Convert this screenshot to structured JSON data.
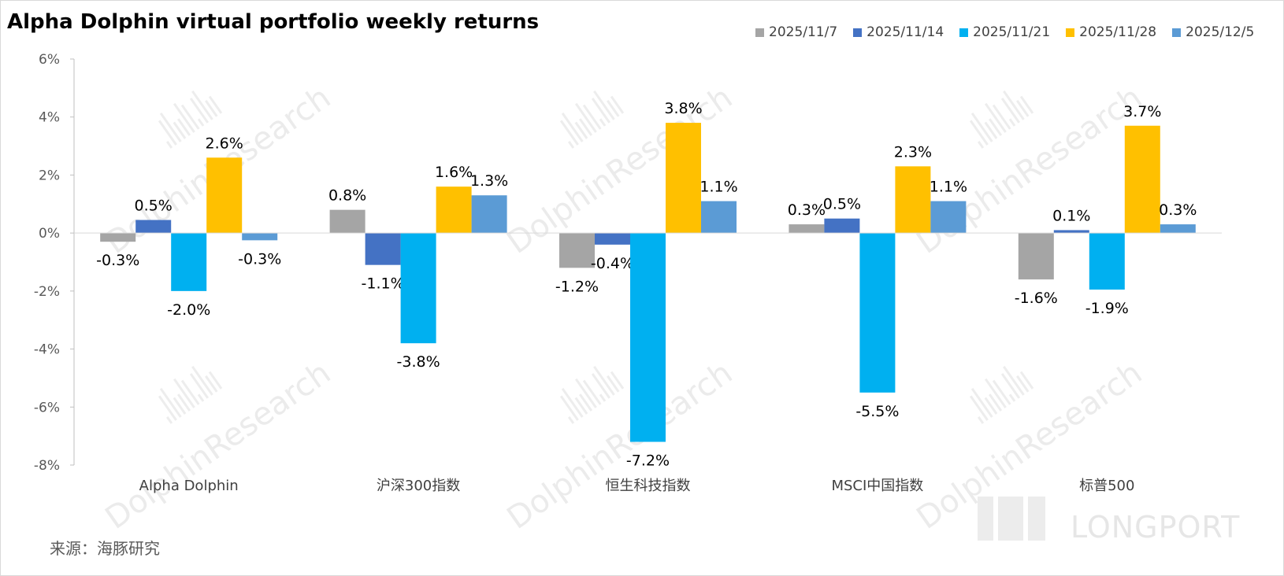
{
  "chart_data": {
    "type": "bar",
    "title": "Alpha Dolphin virtual portfolio weekly returns",
    "categories": [
      "Alpha Dolphin",
      "沪深300指数",
      "恒生科技指数",
      "MSCI中国指数",
      "标普500"
    ],
    "series": [
      {
        "name": "2025/11/7",
        "color": "#a5a5a5",
        "values": [
          -0.3,
          0.8,
          -1.2,
          0.3,
          -1.6
        ],
        "labels": [
          "-0.3%",
          "0.8%",
          "-1.2%",
          "0.3%",
          "-1.6%"
        ]
      },
      {
        "name": "2025/11/14",
        "color": "#4472c4",
        "values": [
          0.45,
          -1.1,
          -0.4,
          0.5,
          0.1
        ],
        "labels": [
          "0.5%",
          "-1.1%",
          "-0.4%",
          "0.5%",
          "0.1%"
        ]
      },
      {
        "name": "2025/11/21",
        "color": "#00b0f0",
        "values": [
          -2.0,
          -3.8,
          -7.2,
          -5.5,
          -1.95
        ],
        "labels": [
          "-2.0%",
          "-3.8%",
          "-7.2%",
          "-5.5%",
          "-1.9%"
        ]
      },
      {
        "name": "2025/11/28",
        "color": "#ffc000",
        "values": [
          2.6,
          1.6,
          3.8,
          2.3,
          3.7
        ],
        "labels": [
          "2.6%",
          "1.6%",
          "3.8%",
          "2.3%",
          "3.7%"
        ]
      },
      {
        "name": "2025/12/5",
        "color": "#5b9bd5",
        "values": [
          -0.25,
          1.3,
          1.1,
          1.1,
          0.3
        ],
        "labels": [
          "-0.3%",
          "1.3%",
          "1.1%",
          "1.1%",
          "0.3%"
        ]
      }
    ],
    "ylim": [
      -8,
      6
    ],
    "yticks": [
      6,
      4,
      2,
      0,
      -2,
      -4,
      -6,
      -8
    ],
    "ytick_labels": [
      "6%",
      "4%",
      "2%",
      "0%",
      "-2%",
      "-4%",
      "-6%",
      "-8%"
    ],
    "xlabel": "",
    "ylabel": "",
    "grid": false,
    "legend_position": "top-right"
  },
  "source": "来源：海豚研究",
  "watermark": "DolphinResearch",
  "logo": "LONGPORT"
}
